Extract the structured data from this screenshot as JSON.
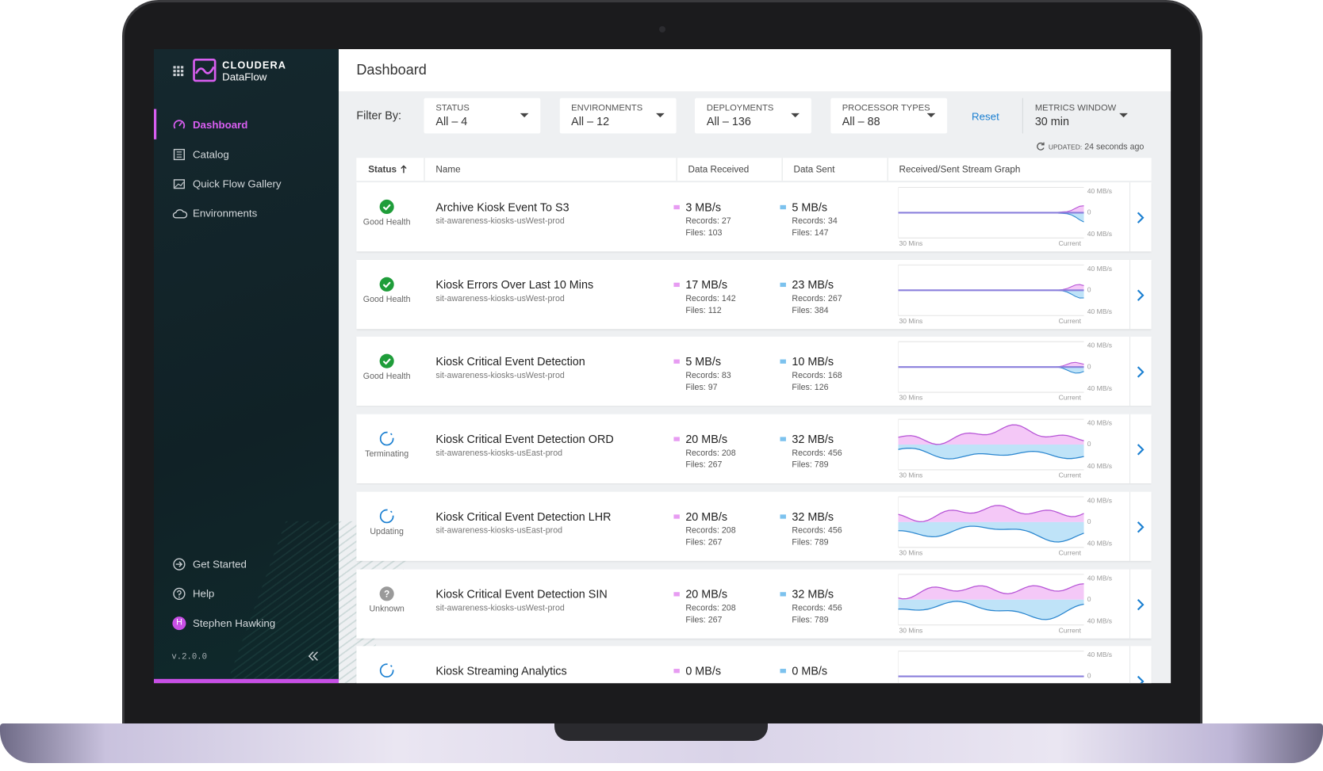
{
  "sidebar": {
    "brand": "CLOUDERA",
    "product": "DataFlow",
    "nav": [
      "Dashboard",
      "Catalog",
      "Quick Flow Gallery",
      "Environments"
    ],
    "footer": [
      "Get Started",
      "Help"
    ],
    "user": {
      "initial": "H",
      "name": "Stephen Hawking"
    },
    "version": "v.2.0.0"
  },
  "header": {
    "title": "Dashboard"
  },
  "filters": {
    "label": "Filter By:",
    "items": [
      {
        "label": "STATUS",
        "value": "All – 4"
      },
      {
        "label": "ENVIRONMENTS",
        "value": "All – 12"
      },
      {
        "label": "DEPLOYMENTS",
        "value": "All – 136"
      },
      {
        "label": "PROCESSOR TYPES",
        "value": "All – 88"
      }
    ],
    "reset": "Reset",
    "metrics": {
      "label": "METRICS WINDOW",
      "value": "30 min"
    },
    "updated": {
      "label": "UPDATED:",
      "value": "24 seconds ago"
    }
  },
  "table": {
    "columns": [
      "Status",
      "Name",
      "Data Received",
      "Data Sent",
      "Received/Sent Stream Graph"
    ],
    "record_label": "Records:",
    "file_label": "Files:",
    "graph_labels": {
      "top": "40 MB/s",
      "mid": "0",
      "bottom": "40 MB/s",
      "start": "30 Mins",
      "end": "Current"
    },
    "rows": [
      {
        "icon": "check",
        "status": "Good Health",
        "name": "Archive Kiosk Event To S3",
        "env": "sit-awareness-kiosks-usWest-prod",
        "received": {
          "rate": "3 MB/s",
          "records": 27,
          "files": 103
        },
        "sent": {
          "rate": "5 MB/s",
          "records": 34,
          "files": 147
        }
      },
      {
        "icon": "check",
        "status": "Good Health",
        "name": "Kiosk Errors Over Last 10 Mins",
        "env": "sit-awareness-kiosks-usWest-prod",
        "received": {
          "rate": "17 MB/s",
          "records": 142,
          "files": 112
        },
        "sent": {
          "rate": "23 MB/s",
          "records": 267,
          "files": 384
        }
      },
      {
        "icon": "check",
        "status": "Good Health",
        "name": "Kiosk Critical Event Detection",
        "env": "sit-awareness-kiosks-usWest-prod",
        "received": {
          "rate": "5 MB/s",
          "records": 83,
          "files": 97
        },
        "sent": {
          "rate": "10 MB/s",
          "records": 168,
          "files": 126
        }
      },
      {
        "icon": "spinner",
        "status": "Terminating",
        "name": "Kiosk Critical Event Detection ORD",
        "env": "sit-awareness-kiosks-usEast-prod",
        "received": {
          "rate": "20 MB/s",
          "records": 208,
          "files": 267
        },
        "sent": {
          "rate": "32 MB/s",
          "records": 456,
          "files": 789
        }
      },
      {
        "icon": "spinner",
        "status": "Updating",
        "name": "Kiosk Critical Event Detection LHR",
        "env": "sit-awareness-kiosks-usEast-prod",
        "received": {
          "rate": "20 MB/s",
          "records": 208,
          "files": 267
        },
        "sent": {
          "rate": "32 MB/s",
          "records": 456,
          "files": 789
        }
      },
      {
        "icon": "?",
        "status": "Unknown",
        "name": "Kiosk Critical Event Detection SIN",
        "env": "sit-awareness-kiosks-usWest-prod",
        "received": {
          "rate": "20 MB/s",
          "records": 208,
          "files": 267
        },
        "sent": {
          "rate": "32 MB/s",
          "records": 456,
          "files": 789
        }
      },
      {
        "icon": "spinner",
        "name": "Kiosk Streaming Analytics",
        "received": {
          "rate": "0 MB/s"
        },
        "sent": {
          "rate": "0 MB/s"
        }
      }
    ]
  }
}
